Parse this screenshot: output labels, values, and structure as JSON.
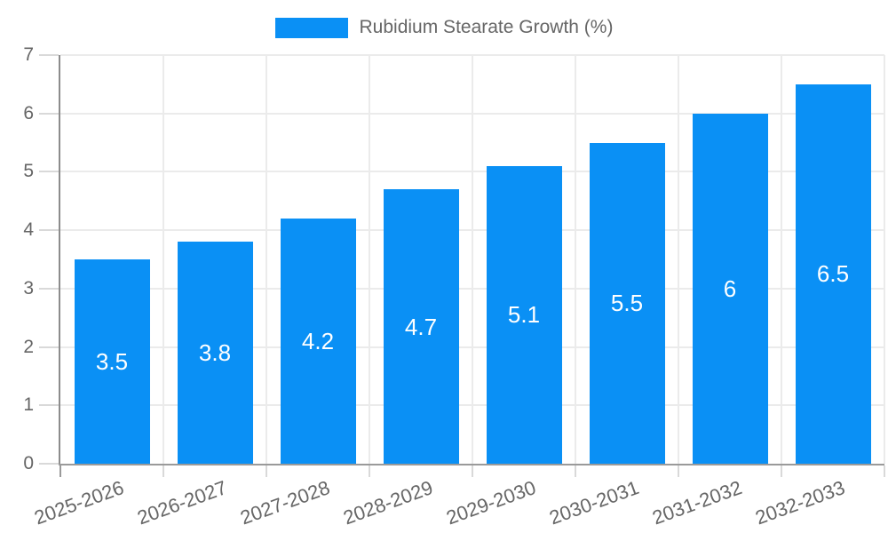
{
  "legend": {
    "label": "Rubidium Stearate Growth (%)",
    "swatch_color": "#0a90f5"
  },
  "colors": {
    "bar": "#0a90f5",
    "grid": "#ebebeb",
    "axis": "#9a9a9a",
    "y_axis": "#8c8c8c",
    "tick": "#d9d9d9",
    "tick_text": "#666666",
    "legend_text": "#666666",
    "value_text": "#ffffff",
    "background": "#ffffff"
  },
  "chart_data": {
    "type": "bar",
    "title": "",
    "series_name": "Rubidium Stearate Growth (%)",
    "categories": [
      "2025-2026",
      "2026-2027",
      "2027-2028",
      "2028-2029",
      "2029-2030",
      "2030-2031",
      "2031-2032",
      "2032-2033"
    ],
    "values": [
      3.5,
      3.8,
      4.2,
      4.7,
      5.1,
      5.5,
      6,
      6.5
    ],
    "value_labels": [
      "3.5",
      "3.8",
      "4.2",
      "4.7",
      "5.1",
      "5.5",
      "6",
      "6.5"
    ],
    "xlabel": "",
    "ylabel": "",
    "ylim": [
      0,
      7
    ],
    "yticks": [
      0,
      1,
      2,
      3,
      4,
      5,
      6,
      7
    ],
    "grid": true,
    "legend_position": "top-center",
    "x_tick_rotation_deg": -20,
    "bar_color": "#0a90f5",
    "value_label_color": "#ffffff"
  }
}
